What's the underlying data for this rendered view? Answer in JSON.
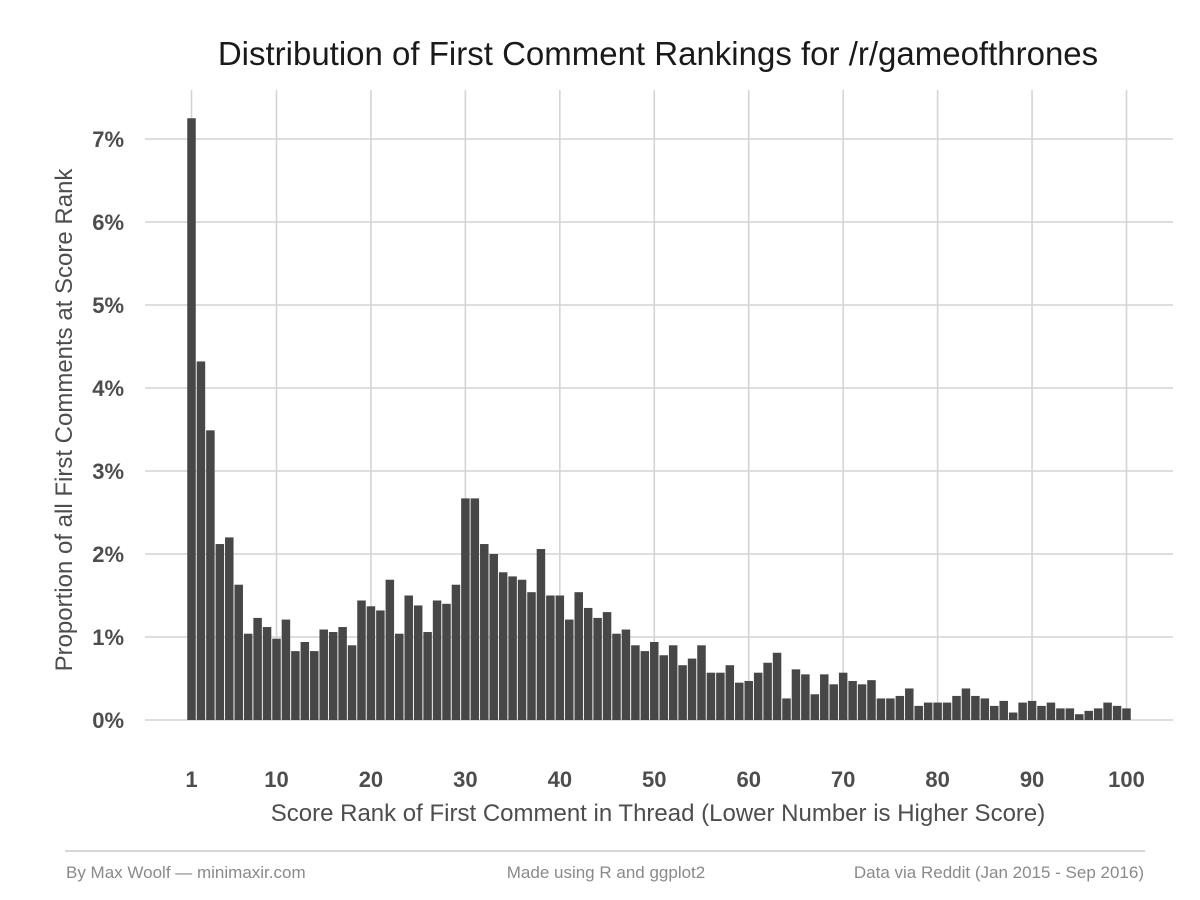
{
  "chart_data": {
    "type": "bar",
    "title": "Distribution of First Comment Rankings for /r/gameofthrones",
    "xlabel": "Score Rank of First Comment in Thread (Lower Number is Higher Score)",
    "ylabel": "Proportion of all First Comments at Score Rank",
    "x_ticks": [
      1,
      10,
      20,
      30,
      40,
      50,
      60,
      70,
      80,
      90,
      100
    ],
    "y_ticks": [
      0,
      1,
      2,
      3,
      4,
      5,
      6,
      7
    ],
    "y_tick_labels": [
      "0%",
      "1%",
      "2%",
      "3%",
      "4%",
      "5%",
      "6%",
      "7%"
    ],
    "xlim": [
      1,
      100
    ],
    "ylim": [
      0,
      7.4
    ],
    "y_unit": "percent",
    "grid": true,
    "bar_color": "#474747",
    "x": [
      1,
      2,
      3,
      4,
      5,
      6,
      7,
      8,
      9,
      10,
      11,
      12,
      13,
      14,
      15,
      16,
      17,
      18,
      19,
      20,
      21,
      22,
      23,
      24,
      25,
      26,
      27,
      28,
      29,
      30,
      31,
      32,
      33,
      34,
      35,
      36,
      37,
      38,
      39,
      40,
      41,
      42,
      43,
      44,
      45,
      46,
      47,
      48,
      49,
      50,
      51,
      52,
      53,
      54,
      55,
      56,
      57,
      58,
      59,
      60,
      61,
      62,
      63,
      64,
      65,
      66,
      67,
      68,
      69,
      70,
      71,
      72,
      73,
      74,
      75,
      76,
      77,
      78,
      79,
      80,
      81,
      82,
      83,
      84,
      85,
      86,
      87,
      88,
      89,
      90,
      91,
      92,
      93,
      94,
      95,
      96,
      97,
      98,
      99,
      100
    ],
    "values": [
      7.25,
      4.32,
      3.49,
      2.12,
      2.2,
      1.63,
      1.04,
      1.23,
      1.12,
      0.98,
      1.21,
      0.83,
      0.94,
      0.83,
      1.09,
      1.06,
      1.12,
      0.9,
      1.44,
      1.37,
      1.32,
      1.69,
      1.04,
      1.5,
      1.38,
      1.06,
      1.44,
      1.4,
      1.63,
      2.67,
      2.67,
      2.12,
      2.0,
      1.78,
      1.73,
      1.69,
      1.54,
      2.06,
      1.5,
      1.5,
      1.21,
      1.54,
      1.35,
      1.23,
      1.3,
      1.04,
      1.09,
      0.9,
      0.83,
      0.94,
      0.78,
      0.9,
      0.66,
      0.74,
      0.9,
      0.57,
      0.57,
      0.66,
      0.45,
      0.47,
      0.57,
      0.69,
      0.81,
      0.26,
      0.61,
      0.55,
      0.31,
      0.55,
      0.43,
      0.57,
      0.47,
      0.43,
      0.48,
      0.26,
      0.26,
      0.29,
      0.38,
      0.17,
      0.21,
      0.21,
      0.21,
      0.29,
      0.38,
      0.29,
      0.26,
      0.17,
      0.23,
      0.09,
      0.21,
      0.23,
      0.17,
      0.21,
      0.14,
      0.14,
      0.07,
      0.11,
      0.14,
      0.21,
      0.17,
      0.14
    ]
  },
  "footer": {
    "author": "By Max Woolf — minimaxir.com",
    "tool": "Made using R and ggplot2",
    "source": "Data via Reddit (Jan 2015 - Sep 2016)"
  }
}
